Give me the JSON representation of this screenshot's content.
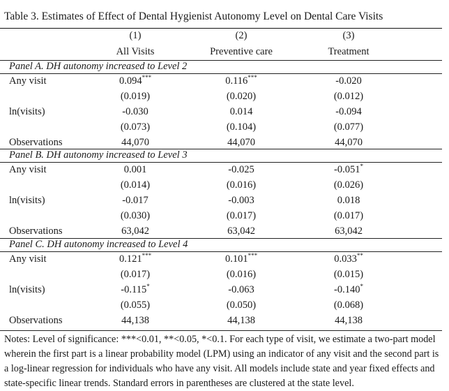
{
  "title": "Table 3. Estimates of Effect of Dental Hygienist Autonomy Level on Dental Care Visits",
  "columns": [
    {
      "num": "(1)",
      "label": "All Visits"
    },
    {
      "num": "(2)",
      "label": "Preventive care"
    },
    {
      "num": "(3)",
      "label": "Treatment"
    }
  ],
  "panels": [
    {
      "title": "Panel A. DH autonomy increased to Level 2",
      "any_label": "Any visit",
      "any": [
        {
          "v": "0.094",
          "s": "***"
        },
        {
          "v": "0.116",
          "s": "***"
        },
        {
          "v": "-0.020",
          "s": ""
        }
      ],
      "any_se": [
        "(0.019)",
        "(0.020)",
        "(0.012)"
      ],
      "ln_label": "ln(visits)",
      "ln": [
        {
          "v": "-0.030",
          "s": ""
        },
        {
          "v": "0.014",
          "s": ""
        },
        {
          "v": "-0.094",
          "s": ""
        }
      ],
      "ln_se": [
        "(0.073)",
        "(0.104)",
        "(0.077)"
      ],
      "obs_label": "Observations",
      "obs": [
        "44,070",
        "44,070",
        "44,070"
      ]
    },
    {
      "title": "Panel B. DH autonomy increased to Level 3",
      "any_label": "Any visit",
      "any": [
        {
          "v": "0.001",
          "s": ""
        },
        {
          "v": "-0.025",
          "s": ""
        },
        {
          "v": "-0.051",
          "s": "*"
        }
      ],
      "any_se": [
        "(0.014)",
        "(0.016)",
        "(0.026)"
      ],
      "ln_label": "ln(visits)",
      "ln": [
        {
          "v": "-0.017",
          "s": ""
        },
        {
          "v": "-0.003",
          "s": ""
        },
        {
          "v": "0.018",
          "s": ""
        }
      ],
      "ln_se": [
        "(0.030)",
        "(0.017)",
        "(0.017)"
      ],
      "obs_label": "Observations",
      "obs": [
        "63,042",
        "63,042",
        "63,042"
      ]
    },
    {
      "title": "Panel C. DH autonomy increased to Level 4",
      "any_label": "Any visit",
      "any": [
        {
          "v": "0.121",
          "s": "***"
        },
        {
          "v": "0.101",
          "s": "***"
        },
        {
          "v": "0.033",
          "s": "**"
        }
      ],
      "any_se": [
        "(0.017)",
        "(0.016)",
        "(0.015)"
      ],
      "ln_label": "ln(visits)",
      "ln": [
        {
          "v": "-0.115",
          "s": "*"
        },
        {
          "v": "-0.063",
          "s": ""
        },
        {
          "v": "-0.140",
          "s": "*"
        }
      ],
      "ln_se": [
        "(0.055)",
        "(0.050)",
        "(0.068)"
      ],
      "obs_label": "Observations",
      "obs": [
        "44,138",
        "44,138",
        "44,138"
      ]
    }
  ],
  "notes": "Notes: Level of significance: ***<0.01, **<0.05, *<0.1. For each type of visit, we estimate a two-part model wherein the first part is a linear probability model (LPM) using an indicator of any visit and the second part is a log-linear regression for individuals who have any visit. All models include state and year fixed effects and state-specific linear trends. Standard errors in parentheses are clustered at the state level."
}
